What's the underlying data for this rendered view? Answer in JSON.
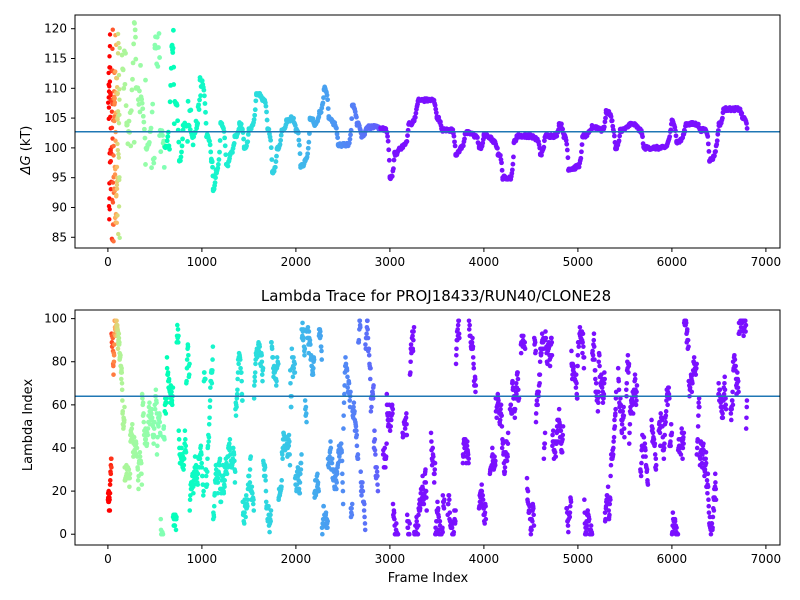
{
  "chart_data": [
    {
      "type": "scatter",
      "title": "",
      "xlabel": "",
      "ylabel_symbol": "ΔG",
      "ylabel_units": " (kT)",
      "xlim": [
        -350,
        7150
      ],
      "ylim": [
        83.2,
        122.3
      ],
      "xticks": [
        0,
        1000,
        2000,
        3000,
        4000,
        5000,
        6000,
        7000
      ],
      "yticks": [
        85,
        90,
        95,
        100,
        105,
        110,
        115,
        120
      ],
      "reference_line": 102.7,
      "reference_line_color": "#1f77b4",
      "colormap": "rainbow (red at early frames → violet at late frames)",
      "anchor_points": [
        {
          "x": 0,
          "y": 120
        },
        {
          "x": 0,
          "y": 110
        },
        {
          "x": 0,
          "y": 100
        },
        {
          "x": 0,
          "y": 90
        },
        {
          "x": 20,
          "y": 86
        },
        {
          "x": 30,
          "y": 118
        },
        {
          "x": 50,
          "y": 84
        },
        {
          "x": 60,
          "y": 95
        },
        {
          "x": 80,
          "y": 107
        },
        {
          "x": 100,
          "y": 96
        },
        {
          "x": 150,
          "y": 113
        },
        {
          "x": 200,
          "y": 104
        },
        {
          "x": 280,
          "y": 121
        },
        {
          "x": 300,
          "y": 110
        },
        {
          "x": 400,
          "y": 100
        },
        {
          "x": 500,
          "y": 117
        },
        {
          "x": 550,
          "y": 103
        },
        {
          "x": 600,
          "y": 100
        },
        {
          "x": 680,
          "y": 117
        },
        {
          "x": 700,
          "y": 108
        },
        {
          "x": 760,
          "y": 98
        },
        {
          "x": 800,
          "y": 104
        },
        {
          "x": 900,
          "y": 102
        },
        {
          "x": 950,
          "y": 104
        },
        {
          "x": 980,
          "y": 111.5
        },
        {
          "x": 1050,
          "y": 102
        },
        {
          "x": 1100,
          "y": 98
        },
        {
          "x": 1120,
          "y": 93
        },
        {
          "x": 1150,
          "y": 96
        },
        {
          "x": 1200,
          "y": 104
        },
        {
          "x": 1260,
          "y": 97
        },
        {
          "x": 1300,
          "y": 99
        },
        {
          "x": 1350,
          "y": 102
        },
        {
          "x": 1400,
          "y": 104
        },
        {
          "x": 1450,
          "y": 100
        },
        {
          "x": 1500,
          "y": 103
        },
        {
          "x": 1580,
          "y": 109
        },
        {
          "x": 1650,
          "y": 108
        },
        {
          "x": 1700,
          "y": 103
        },
        {
          "x": 1750,
          "y": 96
        },
        {
          "x": 1800,
          "y": 100
        },
        {
          "x": 1850,
          "y": 103
        },
        {
          "x": 1900,
          "y": 104.5
        },
        {
          "x": 1950,
          "y": 105
        },
        {
          "x": 2000,
          "y": 103
        },
        {
          "x": 2050,
          "y": 97
        },
        {
          "x": 2100,
          "y": 98
        },
        {
          "x": 2150,
          "y": 105
        },
        {
          "x": 2200,
          "y": 104
        },
        {
          "x": 2250,
          "y": 106
        },
        {
          "x": 2300,
          "y": 110
        },
        {
          "x": 2350,
          "y": 105
        },
        {
          "x": 2400,
          "y": 104
        },
        {
          "x": 2450,
          "y": 100.5
        },
        {
          "x": 2550,
          "y": 100.5
        },
        {
          "x": 2600,
          "y": 107
        },
        {
          "x": 2650,
          "y": 104
        },
        {
          "x": 2700,
          "y": 102
        },
        {
          "x": 2750,
          "y": 103.5
        },
        {
          "x": 2950,
          "y": 103
        },
        {
          "x": 3000,
          "y": 95
        },
        {
          "x": 3050,
          "y": 99
        },
        {
          "x": 3100,
          "y": 100
        },
        {
          "x": 3150,
          "y": 100.5
        },
        {
          "x": 3200,
          "y": 104
        },
        {
          "x": 3300,
          "y": 108
        },
        {
          "x": 3450,
          "y": 108
        },
        {
          "x": 3500,
          "y": 105
        },
        {
          "x": 3550,
          "y": 103
        },
        {
          "x": 3650,
          "y": 103
        },
        {
          "x": 3700,
          "y": 99
        },
        {
          "x": 3750,
          "y": 100
        },
        {
          "x": 3800,
          "y": 102.5
        },
        {
          "x": 3900,
          "y": 102
        },
        {
          "x": 3950,
          "y": 100
        },
        {
          "x": 4000,
          "y": 102
        },
        {
          "x": 4100,
          "y": 101
        },
        {
          "x": 4150,
          "y": 99
        },
        {
          "x": 4200,
          "y": 95
        },
        {
          "x": 4280,
          "y": 95
        },
        {
          "x": 4320,
          "y": 101
        },
        {
          "x": 4350,
          "y": 102
        },
        {
          "x": 4450,
          "y": 102
        },
        {
          "x": 4550,
          "y": 101.5
        },
        {
          "x": 4600,
          "y": 99
        },
        {
          "x": 4650,
          "y": 102
        },
        {
          "x": 4750,
          "y": 102
        },
        {
          "x": 4800,
          "y": 104
        },
        {
          "x": 4850,
          "y": 102
        },
        {
          "x": 4900,
          "y": 96.5
        },
        {
          "x": 5000,
          "y": 97
        },
        {
          "x": 5050,
          "y": 102
        },
        {
          "x": 5150,
          "y": 103.5
        },
        {
          "x": 5250,
          "y": 103
        },
        {
          "x": 5300,
          "y": 106
        },
        {
          "x": 5400,
          "y": 100
        },
        {
          "x": 5450,
          "y": 103
        },
        {
          "x": 5550,
          "y": 104
        },
        {
          "x": 5650,
          "y": 103
        },
        {
          "x": 5700,
          "y": 100
        },
        {
          "x": 5900,
          "y": 100
        },
        {
          "x": 6000,
          "y": 104.5
        },
        {
          "x": 6050,
          "y": 101
        },
        {
          "x": 6150,
          "y": 104
        },
        {
          "x": 6250,
          "y": 104
        },
        {
          "x": 6300,
          "y": 103
        },
        {
          "x": 6350,
          "y": 103
        },
        {
          "x": 6400,
          "y": 98
        },
        {
          "x": 6500,
          "y": 104
        },
        {
          "x": 6550,
          "y": 106.5
        },
        {
          "x": 6700,
          "y": 106.5
        },
        {
          "x": 6750,
          "y": 105
        },
        {
          "x": 6800,
          "y": 103.5
        }
      ]
    },
    {
      "type": "scatter",
      "title": "Lambda Trace for PROJ18433/RUN40/CLONE28",
      "xlabel": "Frame Index",
      "ylabel": "Lambda Index",
      "xlim": [
        -350,
        7150
      ],
      "ylim": [
        -5,
        104
      ],
      "xticks": [
        0,
        1000,
        2000,
        3000,
        4000,
        5000,
        6000,
        7000
      ],
      "yticks": [
        0,
        20,
        40,
        60,
        80,
        100
      ],
      "reference_line": 64,
      "reference_line_color": "#1f77b4",
      "colormap": "rainbow (red at early frames → violet at late frames)",
      "frame_range": [
        0,
        6800
      ],
      "lambda_range": [
        0,
        99
      ],
      "description_of_density": "dense vertical streaks of points spanning lambda 0–99 across all frames"
    }
  ]
}
